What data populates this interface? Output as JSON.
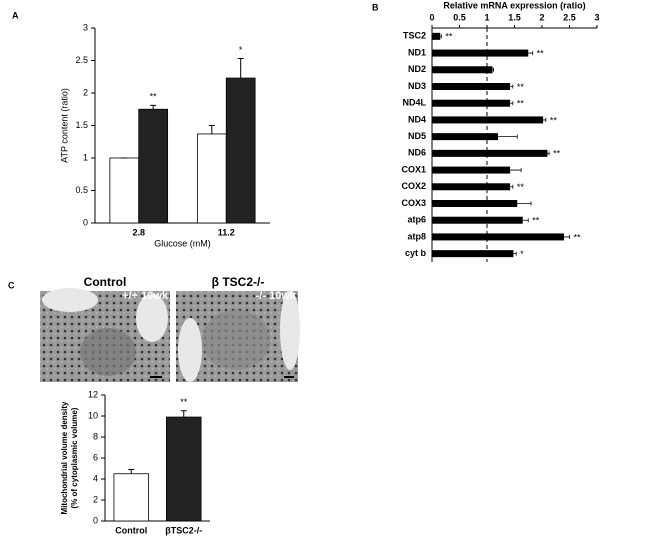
{
  "chart_data": [
    {
      "type": "bar",
      "label": "A",
      "ylabel": [
        "ATP content (ratio)"
      ],
      "xlabel": "Glucose (mM)",
      "categories": [
        "2.8",
        "11.2"
      ],
      "series": [
        {
          "color": "#ffffff",
          "values": [
            1.0,
            1.37
          ],
          "errors": [
            0,
            0.13
          ]
        },
        {
          "color": "#222222",
          "values": [
            1.75,
            2.23
          ],
          "errors": [
            0.06,
            0.3
          ],
          "significance": [
            "**",
            "*"
          ]
        }
      ],
      "ylim": [
        0,
        3
      ],
      "yticks": [
        0,
        0.5,
        1,
        1.5,
        2,
        2.5,
        3
      ]
    },
    {
      "type": "hbar",
      "label": "B",
      "xlabel": "Relative mRNA expression (ratio)",
      "categories": [
        "TSC2",
        "ND1",
        "ND2",
        "ND3",
        "ND4L",
        "ND4",
        "ND5",
        "ND6",
        "COX1",
        "COX2",
        "COX3",
        "atp6",
        "atp8",
        "cyt b"
      ],
      "values": [
        0.15,
        1.75,
        1.1,
        1.42,
        1.42,
        2.02,
        1.2,
        2.1,
        1.42,
        1.42,
        1.55,
        1.65,
        2.4,
        1.48
      ],
      "errors": [
        0.02,
        0.08,
        0.02,
        0.05,
        0.05,
        0.05,
        0.35,
        0.03,
        0.2,
        0.05,
        0.25,
        0.1,
        0.1,
        0.05
      ],
      "significance": [
        "**",
        "**",
        null,
        "**",
        "**",
        "**",
        null,
        "**",
        null,
        "**",
        null,
        "**",
        "**",
        "*"
      ],
      "color": "#000000",
      "reference_line": 1,
      "xlim": [
        0,
        3
      ],
      "xticks": [
        0,
        0.5,
        1,
        1.5,
        2,
        2.5,
        3
      ]
    },
    {
      "type": "bar",
      "label": "C",
      "ylabel": [
        "Mitochondrial volume density",
        "(% of cytoplasmic volume)"
      ],
      "categories": [
        "Control",
        "βTSC2-/-"
      ],
      "values": [
        4.5,
        9.9
      ],
      "errors": [
        0.4,
        0.6
      ],
      "colors": [
        "#ffffff",
        "#222222"
      ],
      "significance": [
        null,
        "**"
      ],
      "ylim": [
        0,
        12
      ],
      "yticks": [
        0,
        2,
        4,
        6,
        8,
        10,
        12
      ]
    }
  ],
  "micrographs": [
    {
      "title": "Control",
      "caption": "+/+ 10wk"
    },
    {
      "title": "β TSC2-/-",
      "caption": "-/- 10wk"
    }
  ]
}
